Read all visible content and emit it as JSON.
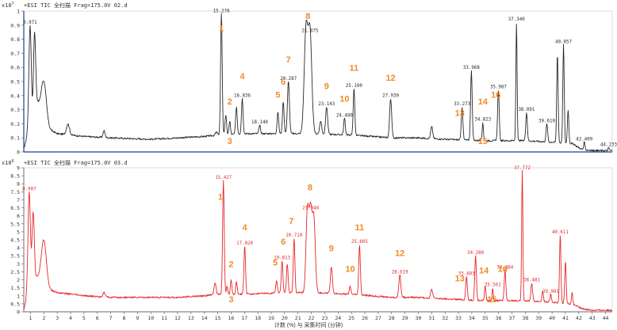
{
  "chart_data": [
    {
      "type": "line",
      "panel": "top",
      "exponent_label": "x10",
      "exponent_sup": "7",
      "title": "+ESI TIC 全扫描 Frag=175.0V 02.d",
      "yticks": [
        "1",
        "0.9",
        "0.8",
        "0.7",
        "0.6",
        "0.5",
        "0.4",
        "0.3",
        "0.2",
        "0.1",
        "0"
      ],
      "ylim": [
        0,
        1.0
      ],
      "xlim": [
        0.5,
        44.5
      ],
      "color": "#2a2a2a",
      "baseline": [
        [
          0.5,
          0.02
        ],
        [
          0.8,
          0.13
        ],
        [
          1.0,
          0.1
        ],
        [
          1.4,
          0.4
        ],
        [
          2.0,
          0.18
        ],
        [
          3.0,
          0.13
        ],
        [
          5.0,
          0.11
        ],
        [
          7.0,
          0.1
        ],
        [
          10.0,
          0.09
        ],
        [
          12.0,
          0.1
        ],
        [
          14.0,
          0.11
        ],
        [
          15.0,
          0.12
        ],
        [
          17.0,
          0.13
        ],
        [
          20.0,
          0.13
        ],
        [
          22.0,
          0.13
        ],
        [
          25.0,
          0.12
        ],
        [
          28.0,
          0.1
        ],
        [
          30.0,
          0.1
        ],
        [
          32.0,
          0.09
        ],
        [
          35.0,
          0.08
        ],
        [
          38.0,
          0.08
        ],
        [
          40.0,
          0.07
        ],
        [
          41.5,
          0.06
        ],
        [
          42.2,
          0.02
        ],
        [
          43.0,
          0.01
        ],
        [
          44.5,
          0.01
        ]
      ],
      "peaks": [
        {
          "x": 0.971,
          "y": 0.9,
          "w": 0.12
        },
        {
          "x": 1.3,
          "y": 0.85,
          "w": 0.1
        },
        {
          "x": 2.0,
          "y": 0.5,
          "w": 0.25
        },
        {
          "x": 3.8,
          "y": 0.2,
          "w": 0.15
        },
        {
          "x": 6.5,
          "y": 0.15,
          "w": 0.1
        },
        {
          "x": 14.9,
          "y": 0.14,
          "w": 0.1
        },
        {
          "x": 15.276,
          "y": 0.98,
          "w": 0.08
        },
        {
          "x": 15.6,
          "y": 0.26,
          "w": 0.08
        },
        {
          "x": 15.9,
          "y": 0.22,
          "w": 0.07
        },
        {
          "x": 16.4,
          "y": 0.32,
          "w": 0.08
        },
        {
          "x": 16.836,
          "y": 0.38,
          "w": 0.08
        },
        {
          "x": 18.14,
          "y": 0.19,
          "w": 0.08
        },
        {
          "x": 19.5,
          "y": 0.28,
          "w": 0.08
        },
        {
          "x": 19.9,
          "y": 0.36,
          "w": 0.08
        },
        {
          "x": 20.287,
          "y": 0.5,
          "w": 0.1
        },
        {
          "x": 21.6,
          "y": 0.86,
          "w": 0.18
        },
        {
          "x": 21.9,
          "y": 0.84,
          "w": 0.18
        },
        {
          "x": 22.7,
          "y": 0.22,
          "w": 0.1
        },
        {
          "x": 23.143,
          "y": 0.32,
          "w": 0.1
        },
        {
          "x": 24.48,
          "y": 0.24,
          "w": 0.08
        },
        {
          "x": 25.19,
          "y": 0.45,
          "w": 0.08
        },
        {
          "x": 27.93,
          "y": 0.38,
          "w": 0.1
        },
        {
          "x": 31.0,
          "y": 0.18,
          "w": 0.1
        },
        {
          "x": 33.273,
          "y": 0.32,
          "w": 0.08
        },
        {
          "x": 33.968,
          "y": 0.58,
          "w": 0.08
        },
        {
          "x": 34.823,
          "y": 0.21,
          "w": 0.06
        },
        {
          "x": 35.987,
          "y": 0.44,
          "w": 0.08
        },
        {
          "x": 37.34,
          "y": 0.92,
          "w": 0.06
        },
        {
          "x": 38.091,
          "y": 0.28,
          "w": 0.08
        },
        {
          "x": 39.61,
          "y": 0.2,
          "w": 0.08
        },
        {
          "x": 40.4,
          "y": 0.7,
          "w": 0.07
        },
        {
          "x": 40.857,
          "y": 0.76,
          "w": 0.07
        },
        {
          "x": 41.2,
          "y": 0.3,
          "w": 0.07
        },
        {
          "x": 42.409,
          "y": 0.07,
          "w": 0.06
        },
        {
          "x": 44.233,
          "y": 0.03,
          "w": 0.06
        }
      ],
      "peak_labels": [
        {
          "x": 0.971,
          "y": 0.9,
          "text": "0.971"
        },
        {
          "x": 15.276,
          "y": 0.98,
          "text": "15.276"
        },
        {
          "x": 16.836,
          "y": 0.38,
          "text": "16.836"
        },
        {
          "x": 18.14,
          "y": 0.19,
          "text": "18.140"
        },
        {
          "x": 20.287,
          "y": 0.5,
          "text": "20.287"
        },
        {
          "x": 21.9,
          "y": 0.84,
          "text": "21.875"
        },
        {
          "x": 23.143,
          "y": 0.32,
          "text": "23.143"
        },
        {
          "x": 24.48,
          "y": 0.24,
          "text": "24.480"
        },
        {
          "x": 25.19,
          "y": 0.45,
          "text": "25.190"
        },
        {
          "x": 27.93,
          "y": 0.38,
          "text": "27.930"
        },
        {
          "x": 33.273,
          "y": 0.32,
          "text": "33.273"
        },
        {
          "x": 33.968,
          "y": 0.58,
          "text": "33.968"
        },
        {
          "x": 34.823,
          "y": 0.21,
          "text": "34.823"
        },
        {
          "x": 35.987,
          "y": 0.44,
          "text": "35.987"
        },
        {
          "x": 37.34,
          "y": 0.92,
          "text": "37.340"
        },
        {
          "x": 38.091,
          "y": 0.28,
          "text": "38.091"
        },
        {
          "x": 39.61,
          "y": 0.2,
          "text": "39.610"
        },
        {
          "x": 40.857,
          "y": 0.76,
          "text": "40.857"
        },
        {
          "x": 42.409,
          "y": 0.07,
          "text": "42.409"
        },
        {
          "x": 44.233,
          "y": 0.03,
          "text": "44.233"
        }
      ],
      "annotations": [
        {
          "n": "1",
          "x": 15.276,
          "y": 0.8
        },
        {
          "n": "2",
          "x": 15.9,
          "y": 0.28
        },
        {
          "n": "3",
          "x": 15.9,
          "y": 0.0
        },
        {
          "n": "4",
          "x": 16.836,
          "y": 0.46
        },
        {
          "n": "5",
          "x": 19.5,
          "y": 0.33
        },
        {
          "n": "6",
          "x": 19.9,
          "y": 0.42
        },
        {
          "n": "7",
          "x": 20.287,
          "y": 0.58
        },
        {
          "n": "8",
          "x": 21.75,
          "y": 0.9
        },
        {
          "n": "9",
          "x": 23.143,
          "y": 0.39
        },
        {
          "n": "10",
          "x": 24.48,
          "y": 0.3
        },
        {
          "n": "11",
          "x": 25.19,
          "y": 0.52
        },
        {
          "n": "12",
          "x": 27.93,
          "y": 0.45
        },
        {
          "n": "13",
          "x": 33.1,
          "y": 0.2
        },
        {
          "n": "14",
          "x": 34.823,
          "y": 0.28
        },
        {
          "n": "15",
          "x": 34.823,
          "y": 0.0
        },
        {
          "n": "16",
          "x": 35.8,
          "y": 0.33
        }
      ]
    },
    {
      "type": "line",
      "panel": "bottom",
      "exponent_label": "x10",
      "exponent_sup": "6",
      "title": "+ESI TIC 全扫描 Frag=175.0V 03.d",
      "yticks": [
        "9",
        "8.5",
        "8",
        "7.5",
        "7",
        "6.5",
        "6",
        "5.5",
        "5",
        "4.5",
        "4",
        "3.5",
        "3",
        "2.5",
        "2",
        "1.5",
        "1",
        "0.5",
        "0"
      ],
      "ylim": [
        0,
        9
      ],
      "xlim": [
        0.5,
        44.5
      ],
      "xticks": [
        "1",
        "2",
        "3",
        "4",
        "5",
        "6",
        "7",
        "8",
        "9",
        "10",
        "11",
        "12",
        "13",
        "14",
        "15",
        "16",
        "17",
        "18",
        "19",
        "20",
        "21",
        "22",
        "23",
        "24",
        "25",
        "26",
        "27",
        "28",
        "29",
        "30",
        "31",
        "32",
        "33",
        "34",
        "35",
        "36",
        "37",
        "38",
        "39",
        "40",
        "41",
        "42",
        "43",
        "44"
      ],
      "xlabel": "计数 (%) 与 采集时间 (分钟)",
      "color": "#e8262a",
      "baseline": [
        [
          0.5,
          0.1
        ],
        [
          0.8,
          1.2
        ],
        [
          1.0,
          1.0
        ],
        [
          1.5,
          2.2
        ],
        [
          2.0,
          1.5
        ],
        [
          3.0,
          1.2
        ],
        [
          5.0,
          1.0
        ],
        [
          7.0,
          0.9
        ],
        [
          10.0,
          0.9
        ],
        [
          12.0,
          0.9
        ],
        [
          14.0,
          1.0
        ],
        [
          15.0,
          1.1
        ],
        [
          17.0,
          1.1
        ],
        [
          20.0,
          1.2
        ],
        [
          22.0,
          1.2
        ],
        [
          25.0,
          1.1
        ],
        [
          28.0,
          0.9
        ],
        [
          30.0,
          0.9
        ],
        [
          32.0,
          0.8
        ],
        [
          35.0,
          0.7
        ],
        [
          38.0,
          0.7
        ],
        [
          40.0,
          0.6
        ],
        [
          41.5,
          0.5
        ],
        [
          42.2,
          0.2
        ],
        [
          43.0,
          0.1
        ],
        [
          44.5,
          0.1
        ]
      ],
      "peaks": [
        {
          "x": 0.907,
          "y": 7.5,
          "w": 0.12
        },
        {
          "x": 1.2,
          "y": 6.2,
          "w": 0.12
        },
        {
          "x": 2.0,
          "y": 4.5,
          "w": 0.25
        },
        {
          "x": 6.5,
          "y": 1.2,
          "w": 0.12
        },
        {
          "x": 14.8,
          "y": 1.8,
          "w": 0.1
        },
        {
          "x": 15.427,
          "y": 8.2,
          "w": 0.08
        },
        {
          "x": 15.7,
          "y": 1.6,
          "w": 0.07
        },
        {
          "x": 16.0,
          "y": 2.0,
          "w": 0.07
        },
        {
          "x": 16.4,
          "y": 1.9,
          "w": 0.07
        },
        {
          "x": 17.02,
          "y": 4.1,
          "w": 0.08
        },
        {
          "x": 19.4,
          "y": 1.9,
          "w": 0.08
        },
        {
          "x": 19.813,
          "y": 3.2,
          "w": 0.08
        },
        {
          "x": 20.2,
          "y": 3.0,
          "w": 0.08
        },
        {
          "x": 20.71,
          "y": 4.6,
          "w": 0.08
        },
        {
          "x": 21.7,
          "y": 6.0,
          "w": 0.14
        },
        {
          "x": 21.948,
          "y": 6.3,
          "w": 0.16
        },
        {
          "x": 22.2,
          "y": 5.5,
          "w": 0.14
        },
        {
          "x": 23.5,
          "y": 2.8,
          "w": 0.1
        },
        {
          "x": 24.9,
          "y": 1.6,
          "w": 0.08
        },
        {
          "x": 25.605,
          "y": 4.2,
          "w": 0.08
        },
        {
          "x": 28.619,
          "y": 2.3,
          "w": 0.1
        },
        {
          "x": 31.0,
          "y": 1.4,
          "w": 0.1
        },
        {
          "x": 33.603,
          "y": 2.2,
          "w": 0.08
        },
        {
          "x": 34.28,
          "y": 3.5,
          "w": 0.08
        },
        {
          "x": 35.0,
          "y": 1.6,
          "w": 0.07
        },
        {
          "x": 35.561,
          "y": 1.5,
          "w": 0.06
        },
        {
          "x": 36.484,
          "y": 2.6,
          "w": 0.08
        },
        {
          "x": 37.772,
          "y": 8.8,
          "w": 0.06
        },
        {
          "x": 38.481,
          "y": 1.8,
          "w": 0.08
        },
        {
          "x": 39.3,
          "y": 1.3,
          "w": 0.07
        },
        {
          "x": 39.901,
          "y": 1.1,
          "w": 0.07
        },
        {
          "x": 40.611,
          "y": 4.8,
          "w": 0.07
        },
        {
          "x": 41.0,
          "y": 3.2,
          "w": 0.07
        },
        {
          "x": 41.5,
          "y": 1.2,
          "w": 0.06
        }
      ],
      "peak_labels": [
        {
          "x": 0.907,
          "y": 7.5,
          "text": "0.907"
        },
        {
          "x": 15.427,
          "y": 8.2,
          "text": "15.427"
        },
        {
          "x": 17.02,
          "y": 4.1,
          "text": "17.020"
        },
        {
          "x": 19.813,
          "y": 3.2,
          "text": "19.813"
        },
        {
          "x": 20.71,
          "y": 4.6,
          "text": "20.710"
        },
        {
          "x": 21.948,
          "y": 6.3,
          "text": "21.948"
        },
        {
          "x": 25.605,
          "y": 4.2,
          "text": "25.605"
        },
        {
          "x": 28.619,
          "y": 2.3,
          "text": "28.619"
        },
        {
          "x": 33.603,
          "y": 2.2,
          "text": "33.603"
        },
        {
          "x": 34.28,
          "y": 3.5,
          "text": "34.280"
        },
        {
          "x": 35.561,
          "y": 1.5,
          "text": "35.561"
        },
        {
          "x": 36.484,
          "y": 2.6,
          "text": "36.484"
        },
        {
          "x": 37.772,
          "y": 8.8,
          "text": "37.772"
        },
        {
          "x": 38.481,
          "y": 1.8,
          "text": "38.481"
        },
        {
          "x": 39.901,
          "y": 1.1,
          "text": "39.901"
        },
        {
          "x": 40.611,
          "y": 4.8,
          "text": "40.611"
        }
      ],
      "annotations": [
        {
          "n": "1",
          "x": 15.2,
          "y": 6.5
        },
        {
          "n": "2",
          "x": 16.0,
          "y": 2.3
        },
        {
          "n": "3",
          "x": 16.0,
          "y": 0.1
        },
        {
          "n": "4",
          "x": 17.02,
          "y": 4.6
        },
        {
          "n": "5",
          "x": 19.3,
          "y": 2.4
        },
        {
          "n": "6",
          "x": 19.9,
          "y": 3.7
        },
        {
          "n": "7",
          "x": 20.5,
          "y": 5.0
        },
        {
          "n": "8",
          "x": 21.9,
          "y": 7.1
        },
        {
          "n": "9",
          "x": 23.5,
          "y": 3.3
        },
        {
          "n": "10",
          "x": 24.9,
          "y": 2.0
        },
        {
          "n": "11",
          "x": 25.605,
          "y": 4.6
        },
        {
          "n": "12",
          "x": 28.619,
          "y": 3.0
        },
        {
          "n": "13",
          "x": 33.1,
          "y": 1.4
        },
        {
          "n": "14",
          "x": 34.9,
          "y": 1.9
        },
        {
          "n": "15",
          "x": 35.5,
          "y": 0.1
        },
        {
          "n": "16",
          "x": 36.3,
          "y": 2.0
        }
      ]
    }
  ],
  "colors": {
    "top_line": "#2a2a2a",
    "bottom_line": "#e8262a",
    "annotation": "#f08a28",
    "axis": "#1f3f8c",
    "grid": "#d9d9d9"
  }
}
